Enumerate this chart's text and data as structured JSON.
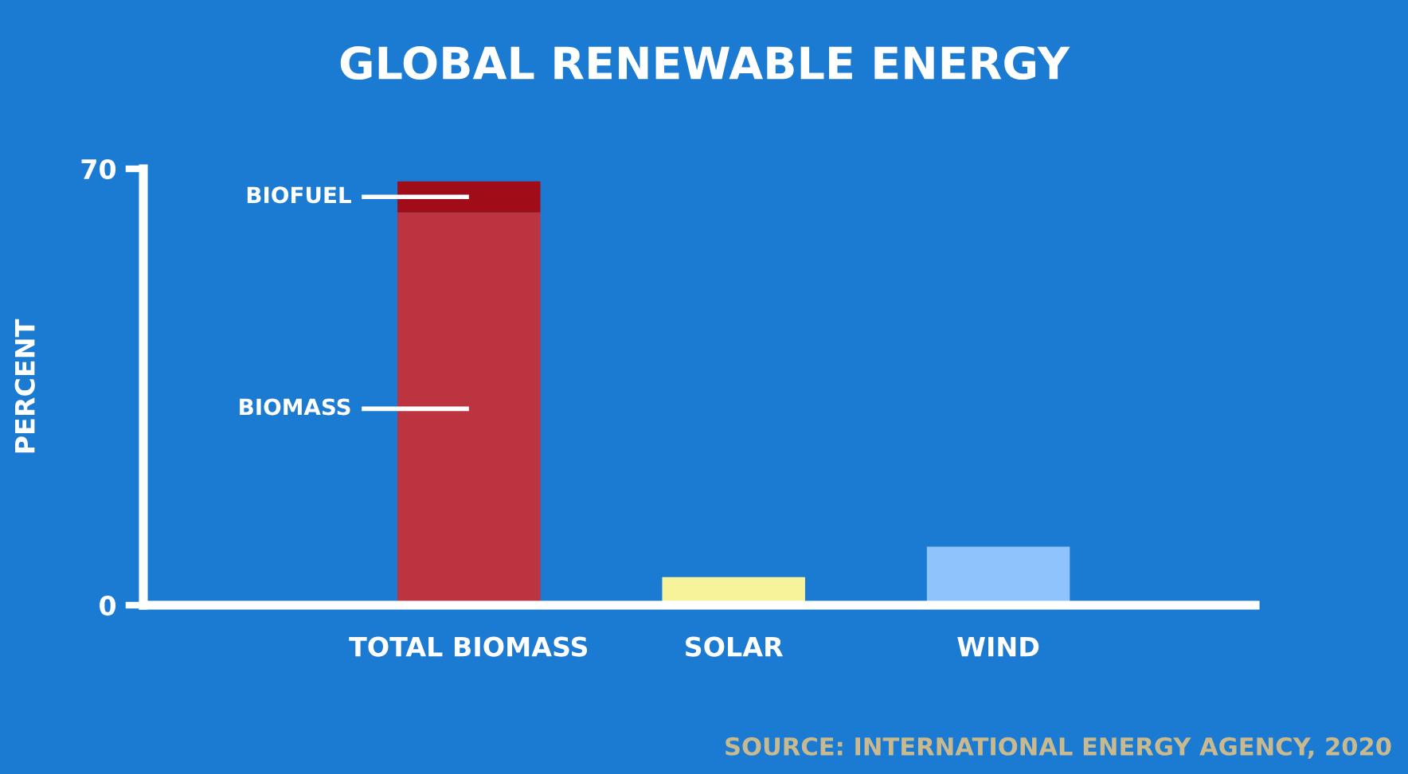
{
  "chart_data": {
    "type": "bar",
    "title": "GLOBAL RENEWABLE ENERGY",
    "ylabel": "PERCENT",
    "categories": [
      "TOTAL BIOMASS",
      "SOLAR",
      "WIND"
    ],
    "stacked": true,
    "series": [
      {
        "name": "BIOMASS",
        "color": "#bb3440",
        "values": [
          63,
          null,
          null
        ]
      },
      {
        "name": "BIOFUEL",
        "color": "#a00d19",
        "values": [
          5,
          null,
          null
        ]
      },
      {
        "colors": [
          "#bb3440",
          "#f6f39a",
          "#8ec4fb"
        ],
        "values": [
          null,
          4.5,
          9.4
        ]
      }
    ],
    "ylim": [
      0,
      70
    ],
    "yticks": [
      0,
      70
    ],
    "grid": false,
    "legend": false,
    "annotations": [
      "SOURCE: INTERNATIONAL ENERGY AGENCY, 2020"
    ]
  }
}
